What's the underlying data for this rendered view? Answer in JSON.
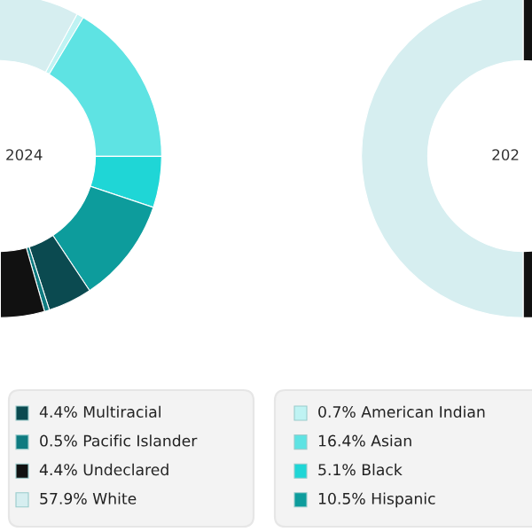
{
  "chart_data": [
    {
      "type": "donut",
      "title": "2024",
      "legend": "bottom",
      "categories": [
        "0.7% American Indian",
        "16.4% Asian",
        "5.1% Black",
        "10.5% Hispanic",
        "4.4% Multiracial",
        "0.5% Pacific Islander",
        "4.4% Undeclared",
        "57.9% White"
      ],
      "values": [
        0.7,
        16.4,
        5.1,
        10.5,
        4.4,
        0.5,
        4.4,
        57.9
      ],
      "colors": [
        "#bff3f3",
        "#5ee3e3",
        "#1fd6d6",
        "#0d9c9c",
        "#0b4a50",
        "#0e7b80",
        "#111111",
        "#d6eef0"
      ]
    },
    {
      "type": "donut",
      "title": "202",
      "categories": [
        null,
        null
      ],
      "values": [
        50,
        50
      ],
      "colors": [
        "#111111",
        "#d6eef0"
      ]
    }
  ]
}
